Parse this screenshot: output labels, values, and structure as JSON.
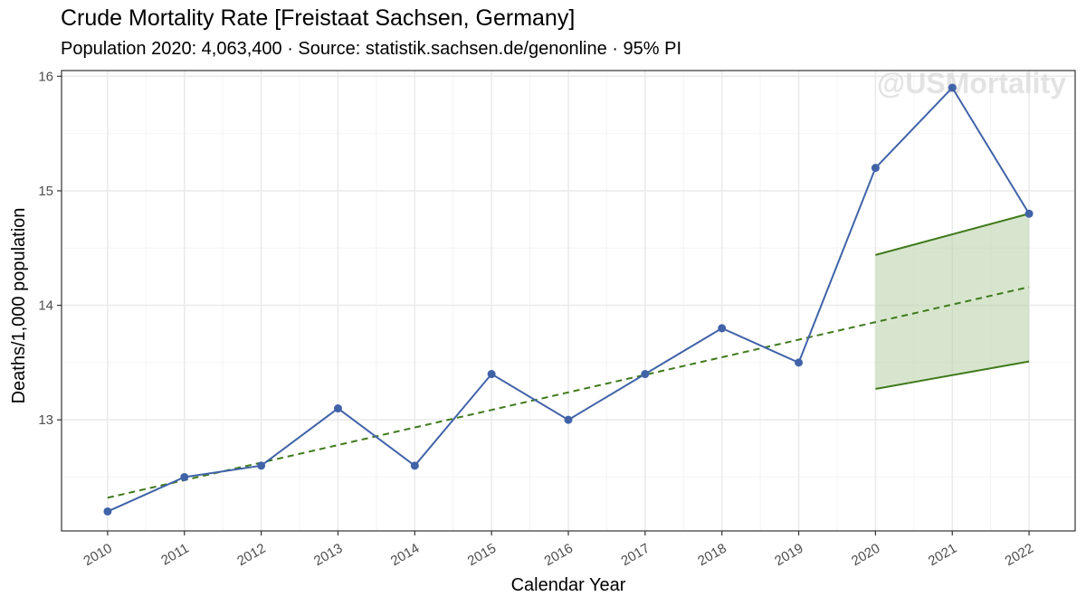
{
  "header": {
    "title": "Crude Mortality Rate [Freistaat Sachsen, Germany]",
    "subtitle": "Population 2020: 4,063,400 · Source: statistik.sachsen.de/genonline · 95% PI"
  },
  "watermark": "@USMortality",
  "colors": {
    "observed": "#4063a8",
    "trend": "#3f7a1c",
    "interval_fill": "#b8d0a6",
    "grid_major": "#ebebeb",
    "grid_minor": "#f4f4f4",
    "panel_border": "#333333"
  },
  "chart_data": {
    "type": "line",
    "title": "Crude Mortality Rate [Freistaat Sachsen, Germany]",
    "subtitle": "Population 2020: 4,063,400 · Source: statistik.sachsen.de/genonline · 95% PI",
    "xlabel": "Calendar Year",
    "ylabel": "Deaths/1,000 population",
    "x": [
      2010,
      2011,
      2012,
      2013,
      2014,
      2015,
      2016,
      2017,
      2018,
      2019,
      2020,
      2021,
      2022
    ],
    "xticks": [
      "2010",
      "2011",
      "2012",
      "2013",
      "2014",
      "2015",
      "2016",
      "2017",
      "2018",
      "2019",
      "2020",
      "2021",
      "2022"
    ],
    "yticks": [
      13,
      14,
      15,
      16
    ],
    "ylim": [
      12.03,
      16.05
    ],
    "xlim": [
      2009.4,
      2022.6
    ],
    "grid": true,
    "series": [
      {
        "kind": "observed",
        "x": [
          2010,
          2011,
          2012,
          2013,
          2014,
          2015,
          2016,
          2017,
          2018,
          2019,
          2020,
          2021,
          2022
        ],
        "values": [
          12.2,
          12.5,
          12.6,
          13.1,
          12.6,
          13.4,
          13.0,
          13.4,
          13.8,
          13.5,
          15.2,
          15.9,
          14.8
        ]
      },
      {
        "kind": "trend",
        "x": [
          2010,
          2022
        ],
        "values": [
          12.32,
          14.16
        ]
      },
      {
        "kind": "prediction_interval",
        "x": [
          2020,
          2022
        ],
        "upper": [
          14.44,
          14.8
        ],
        "lower": [
          13.27,
          13.51
        ]
      }
    ]
  }
}
